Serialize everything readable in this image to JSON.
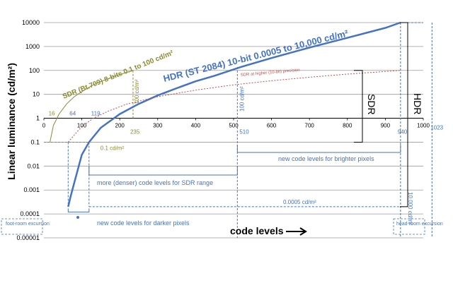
{
  "chart_data": {
    "type": "line",
    "title": "",
    "xlabel": "code levels",
    "ylabel": "Linear luminance (cd/m²)",
    "xlim": [
      0,
      1000
    ],
    "ylim": [
      1e-05,
      10000
    ],
    "yscale": "log",
    "grid": "horizontal",
    "x_ticks": [
      "0",
      "100",
      "200",
      "300",
      "400",
      "500",
      "600",
      "700",
      "800",
      "900",
      "1000"
    ],
    "y_ticks": [
      "10000",
      "1000",
      "100",
      "10",
      "1",
      "0.1",
      "0.01",
      "0.001",
      "0.0001",
      "0.00001"
    ],
    "series": [
      {
        "name": "HDR (ST 2084)  10-bit  0.0005 to 10,000 cd/m²",
        "color": "#4472c4",
        "x": [
          64,
          70,
          80,
          100,
          119,
          150,
          200,
          250,
          300,
          350,
          400,
          450,
          520,
          600,
          700,
          800,
          900,
          940
        ],
        "y": [
          0.0002,
          0.0005,
          0.002,
          0.03,
          0.1,
          0.4,
          1.5,
          4,
          9,
          18,
          35,
          60,
          140,
          330,
          900,
          2300,
          6000,
          10000
        ]
      },
      {
        "name": "SDR (Bt.709)  8-bits  0.1 to 100 cd/m²",
        "color": "#8a8a30",
        "x": [
          16,
          25,
          40,
          60,
          80,
          100,
          130,
          160,
          190,
          215,
          235
        ],
        "y": [
          0.1,
          0.5,
          1.5,
          4,
          8,
          13,
          25,
          40,
          60,
          80,
          100
        ]
      },
      {
        "name": "SDR at higher (10-bit) precision",
        "color": "#c0504d",
        "x": [
          64,
          80,
          100,
          130,
          170,
          220,
          300,
          400,
          500,
          600,
          700,
          800,
          940
        ],
        "y": [
          0.1,
          0.2,
          0.45,
          1,
          2,
          4,
          8,
          15,
          25,
          37,
          52,
          70,
          100
        ]
      }
    ],
    "annotations": {
      "sdr_level_labels": [
        "16",
        "64",
        "119",
        "235"
      ],
      "hdr_level_labels": [
        "510",
        "940",
        "1023"
      ],
      "sdr_peak_label": "100 cd/m²",
      "mid_label": "100 cd/m²",
      "low_label": "0.1 cd/m²",
      "floor_label": "0.0005 cd/m²",
      "peak_label": "10,000 cd/m²",
      "dark_bracket": "new code levels for darker pixels",
      "sdr_range_bracket": "more (denser) code levels for SDR range",
      "bright_bracket": "new code levels for brighter pixels",
      "footroom": "foot-room excursion",
      "headroom": "head-room excursion",
      "sdr_brace": "SDR",
      "hdr_brace": "HDR"
    }
  }
}
